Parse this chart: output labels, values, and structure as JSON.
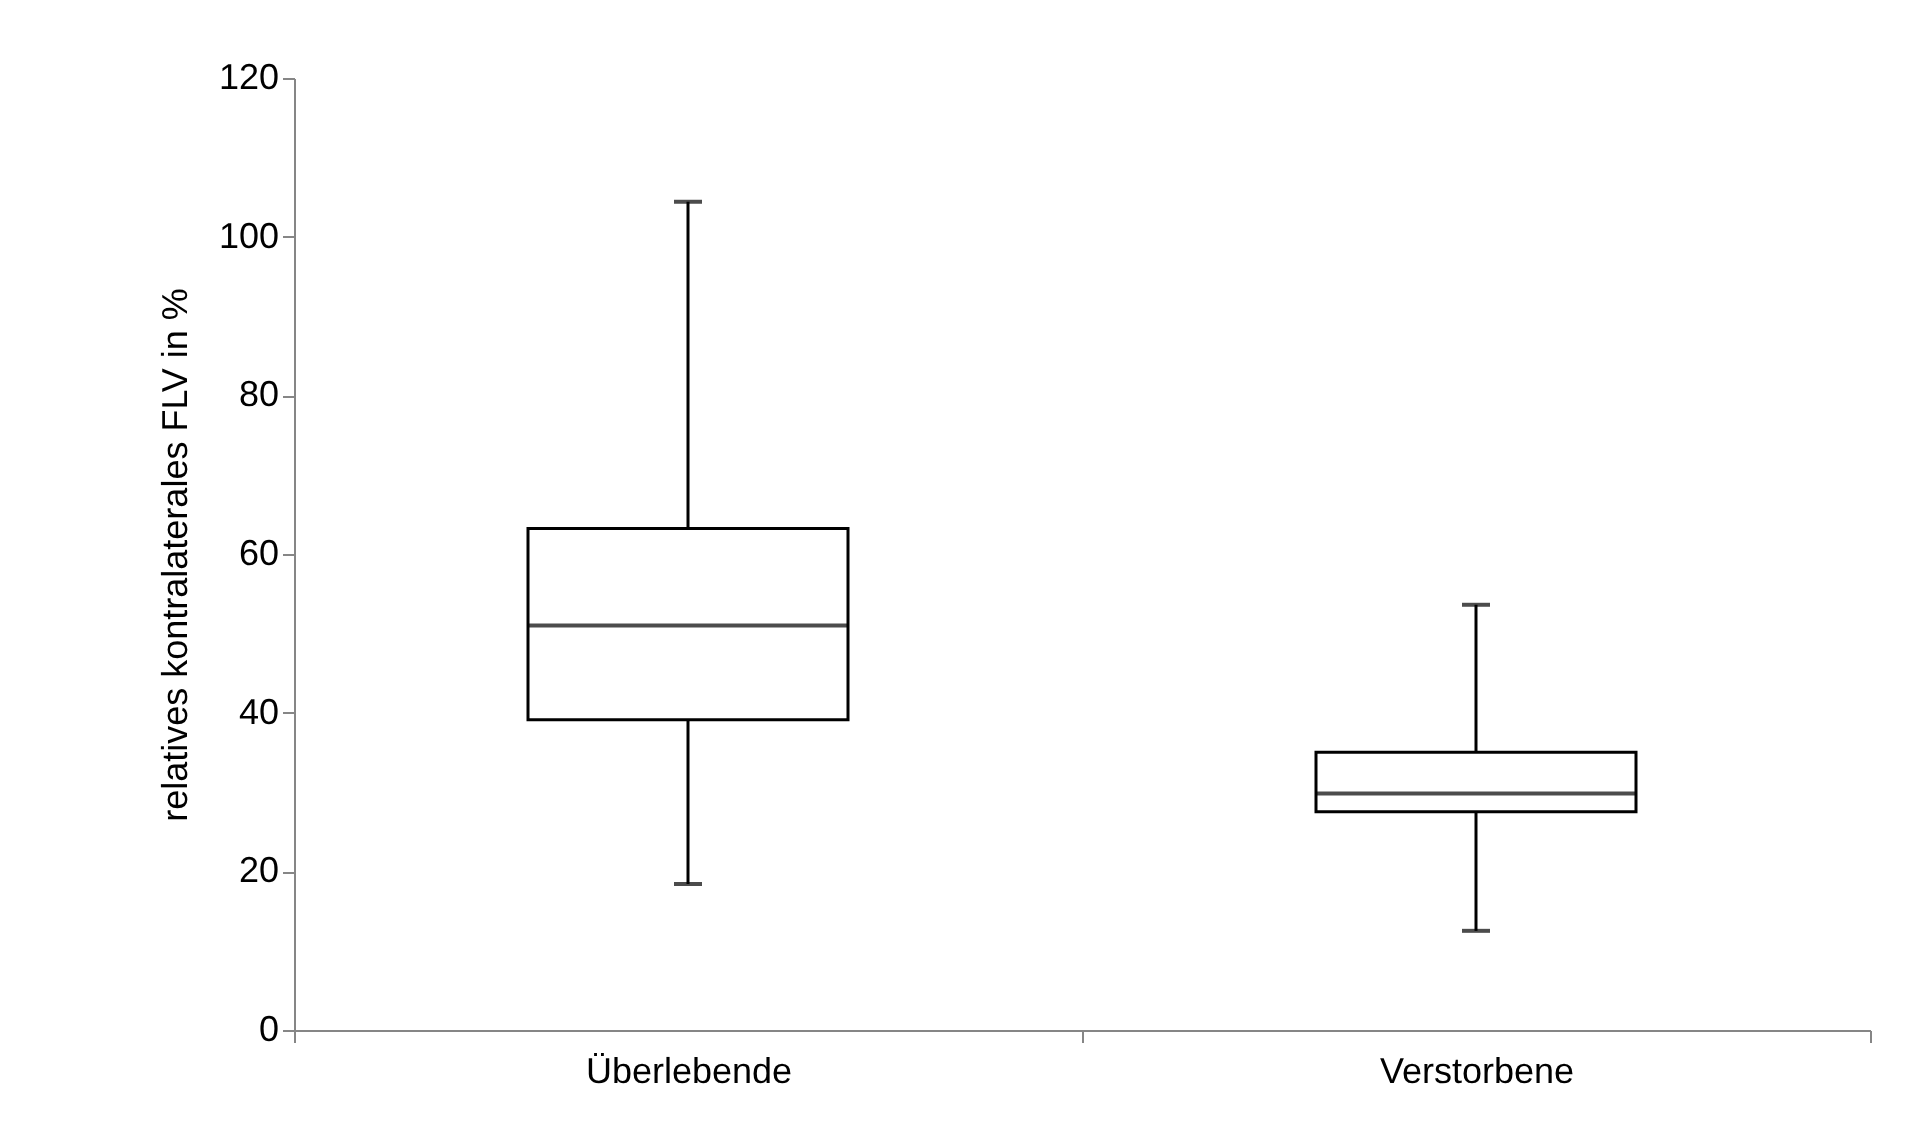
{
  "chart_data": {
    "type": "box",
    "categories": [
      "Überlebende",
      "Verstorbene"
    ],
    "boxes": [
      {
        "low": 18.4,
        "q1": 39.1,
        "median": 51.0,
        "q3": 63.2,
        "high": 104.4
      },
      {
        "low": 12.5,
        "q1": 27.5,
        "median": 29.8,
        "q3": 35.0,
        "high": 53.6
      }
    ],
    "ylabel": "relatives kontralaterales FLV in %",
    "ylim": [
      0,
      120
    ],
    "yticks": [
      0,
      20,
      40,
      60,
      80,
      100,
      120
    ],
    "grid": false
  }
}
